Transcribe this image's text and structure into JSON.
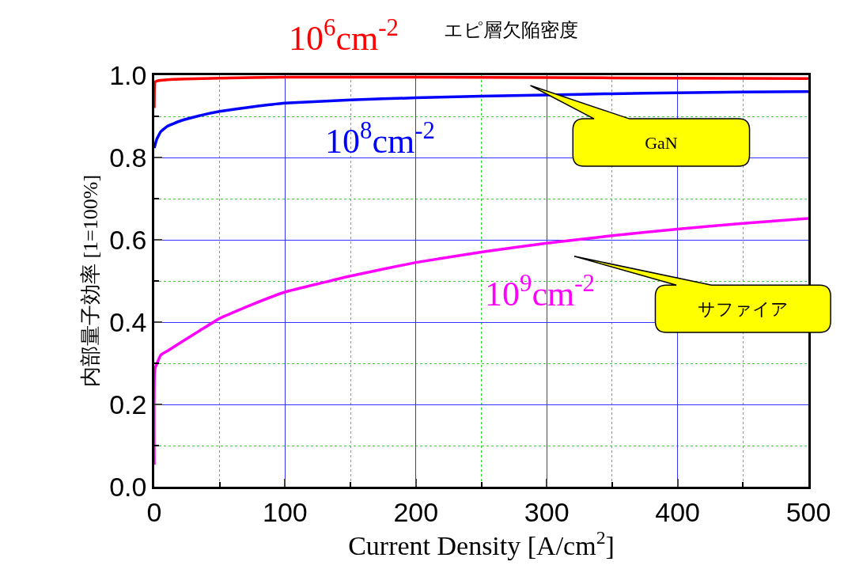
{
  "chart_data": {
    "type": "line",
    "title": "エピ層欠陥密度",
    "xlabel": "Current Density [A/cm$^{2}$]",
    "ylabel": "内部量子効率 [1=100%]",
    "xlim": [
      0,
      500
    ],
    "xticks": [
      0,
      {
        "value": 50,
        "label": null
      },
      100,
      {
        "value": 150,
        "label": null
      },
      200,
      {
        "value": 250,
        "label": null
      },
      300,
      {
        "value": 350,
        "label": null
      },
      400,
      {
        "value": 450,
        "label": null
      },
      500
    ],
    "ylim": [
      0,
      1
    ],
    "yticks": [
      {
        "value": 0,
        "label": "0.0"
      },
      {
        "value": 0.1,
        "label": null
      },
      0.2,
      {
        "value": 0.3,
        "label": null
      },
      0.4,
      {
        "value": 0.5,
        "label": null
      },
      0.6,
      {
        "value": 0.7,
        "label": null
      },
      0.8,
      {
        "value": 0.9,
        "label": null
      },
      {
        "value": 1,
        "label": "1.0"
      }
    ],
    "grid": true,
    "legend": false,
    "marker": "none",
    "line_style": "solid",
    "series": [
      {
        "name": "10$^{6}$cm$^{-2}$",
        "color": "#ff0000",
        "x": [
          0,
          0.5,
          2,
          10,
          25,
          50,
          100,
          200,
          300,
          400,
          500
        ],
        "values": [
          0.92,
          0.983,
          0.986,
          0.989,
          0.991,
          0.993,
          0.995,
          0.995,
          0.994,
          0.993,
          0.992
        ]
      },
      {
        "name": "10$^{8}$cm$^{-2}$",
        "color": "#0000ff",
        "x": [
          0,
          2,
          5,
          10,
          20,
          35,
          50,
          75,
          100,
          150,
          200,
          250,
          300,
          350,
          400,
          450,
          500
        ],
        "values": [
          0.823,
          0.845,
          0.863,
          0.876,
          0.889,
          0.902,
          0.912,
          0.923,
          0.932,
          0.94,
          0.945,
          0.949,
          0.952,
          0.955,
          0.957,
          0.959,
          0.96
        ]
      },
      {
        "name": "10$^{9}$cm$^{-2}$",
        "color": "#ff00ff",
        "x": [
          0,
          0.5,
          5,
          10,
          20,
          35,
          50,
          75,
          100,
          150,
          200,
          250,
          300,
          350,
          400,
          450,
          500
        ],
        "values": [
          0.054,
          0.286,
          0.32,
          0.33,
          0.35,
          0.38,
          0.409,
          0.443,
          0.473,
          0.512,
          0.545,
          0.57,
          0.592,
          0.61,
          0.626,
          0.64,
          0.652
        ]
      }
    ],
    "annotations": [
      "GaN",
      "サファイア"
    ]
  }
}
